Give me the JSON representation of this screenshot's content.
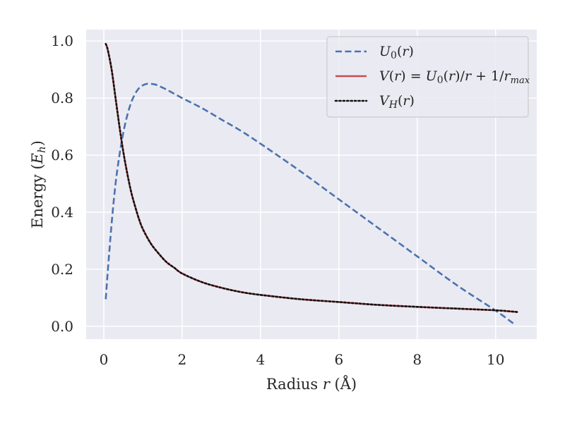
{
  "chart_data": {
    "type": "line",
    "xlabel": "Radius r (Å)",
    "ylabel": "Energy (E_h)",
    "xlim": [
      -0.45,
      11.05
    ],
    "ylim": [
      -0.045,
      1.04
    ],
    "xticks": [
      0,
      2,
      4,
      6,
      8,
      10
    ],
    "yticks": [
      0.0,
      0.2,
      0.4,
      0.6,
      0.8,
      1.0
    ],
    "xtick_labels": [
      "0",
      "2",
      "4",
      "6",
      "8",
      "10"
    ],
    "ytick_labels": [
      "0.0",
      "0.2",
      "0.4",
      "0.6",
      "0.8",
      "1.0"
    ],
    "grid": true,
    "legend_position": "top-right",
    "style": {
      "background": "#eaeaf2",
      "grid_color": "#ffffff"
    },
    "series": [
      {
        "name": "U0(r)",
        "color": "#4c72b0",
        "line_style": "dashed",
        "x": [
          0.05,
          0.1,
          0.2,
          0.3,
          0.4,
          0.5,
          0.6,
          0.7,
          0.8,
          0.9,
          1.0,
          1.1,
          1.2,
          1.3,
          1.4,
          1.6,
          1.8,
          2.0,
          2.5,
          3.0,
          3.5,
          4.0,
          5.0,
          6.0,
          7.0,
          8.0,
          9.0,
          10.0,
          10.5
        ],
        "y": [
          0.095,
          0.19,
          0.36,
          0.5,
          0.6,
          0.68,
          0.74,
          0.785,
          0.815,
          0.835,
          0.845,
          0.85,
          0.85,
          0.848,
          0.843,
          0.83,
          0.815,
          0.8,
          0.765,
          0.725,
          0.685,
          0.64,
          0.545,
          0.445,
          0.345,
          0.245,
          0.145,
          0.055,
          0.005
        ]
      },
      {
        "name": "V(r) = U0(r)/r + 1/r_max",
        "color": "#c44e52",
        "line_style": "solid",
        "x": [
          0.05,
          0.1,
          0.2,
          0.3,
          0.4,
          0.5,
          0.6,
          0.7,
          0.8,
          0.9,
          1.0,
          1.2,
          1.4,
          1.6,
          1.8,
          2.0,
          2.5,
          3.0,
          3.5,
          4.0,
          5.0,
          6.0,
          7.0,
          8.0,
          9.0,
          10.0,
          10.55
        ],
        "y": [
          0.99,
          0.97,
          0.9,
          0.8,
          0.7,
          0.61,
          0.535,
          0.47,
          0.42,
          0.375,
          0.34,
          0.29,
          0.255,
          0.225,
          0.205,
          0.185,
          0.155,
          0.135,
          0.12,
          0.11,
          0.095,
          0.085,
          0.075,
          0.068,
          0.062,
          0.056,
          0.05
        ]
      },
      {
        "name": "VH(r)",
        "color": "#111111",
        "line_style": "dotted",
        "x": [
          0.05,
          0.1,
          0.2,
          0.3,
          0.4,
          0.5,
          0.6,
          0.7,
          0.8,
          0.9,
          1.0,
          1.2,
          1.4,
          1.6,
          1.8,
          2.0,
          2.5,
          3.0,
          3.5,
          4.0,
          5.0,
          6.0,
          7.0,
          8.0,
          9.0,
          10.0,
          10.55
        ],
        "y": [
          0.99,
          0.97,
          0.9,
          0.8,
          0.7,
          0.61,
          0.535,
          0.47,
          0.42,
          0.375,
          0.34,
          0.29,
          0.255,
          0.225,
          0.205,
          0.185,
          0.155,
          0.135,
          0.12,
          0.11,
          0.095,
          0.085,
          0.075,
          0.068,
          0.062,
          0.056,
          0.05
        ]
      }
    ]
  }
}
